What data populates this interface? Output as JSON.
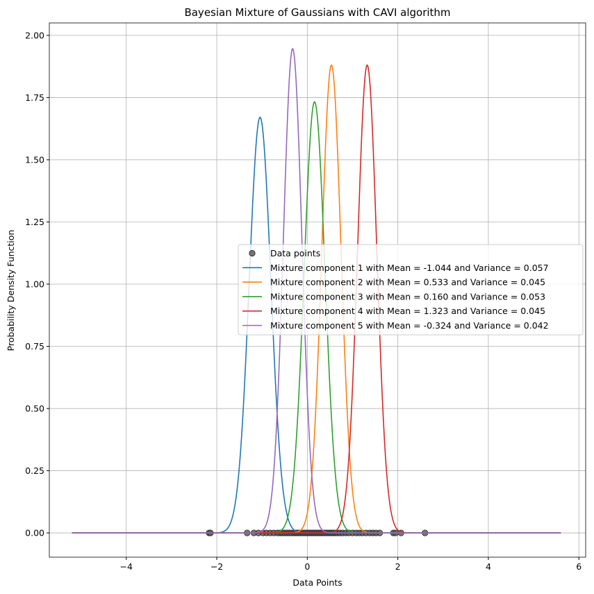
{
  "chart_data": {
    "type": "line",
    "title": "Bayesian Mixture of Gaussians with CAVI algorithm",
    "xlabel": "Data Points",
    "ylabel": "Probability Density Function",
    "xlim": [
      -5.7,
      6.15
    ],
    "ylim": [
      -0.0975,
      2.05
    ],
    "xticks": [
      -4,
      -2,
      0,
      2,
      4,
      6
    ],
    "xtick_labels": [
      "−4",
      "−2",
      "0",
      "2",
      "4",
      "6"
    ],
    "yticks": [
      0.0,
      0.25,
      0.5,
      0.75,
      1.0,
      1.25,
      1.5,
      1.75,
      2.0
    ],
    "ytick_labels": [
      "0.00",
      "0.25",
      "0.50",
      "0.75",
      "1.00",
      "1.25",
      "1.50",
      "1.75",
      "2.00"
    ],
    "grid": true,
    "legend_position": "center-right",
    "x_range": [
      -5.2,
      5.6
    ],
    "scatter": {
      "name": "Data points",
      "color": "#555555",
      "x": [
        -2.17,
        -2.14,
        -1.33,
        -1.18,
        -1.08,
        -0.98,
        -0.9,
        -0.82,
        -0.74,
        -0.66,
        -0.6,
        -0.55,
        -0.5,
        -0.45,
        -0.4,
        -0.35,
        -0.3,
        -0.26,
        -0.22,
        -0.18,
        -0.14,
        -0.1,
        -0.06,
        -0.02,
        0.02,
        0.06,
        0.1,
        0.14,
        0.18,
        0.22,
        0.26,
        0.3,
        0.34,
        0.38,
        0.42,
        0.46,
        0.5,
        0.54,
        0.58,
        0.62,
        0.66,
        0.72,
        0.78,
        0.85,
        0.92,
        1.0,
        1.08,
        1.15,
        1.22,
        1.3,
        1.38,
        1.45,
        1.52,
        1.6,
        1.9,
        1.95,
        2.07,
        2.6
      ]
    },
    "series": [
      {
        "name": "Mixture component 1 with Mean = -1.044 and Variance = 0.057",
        "mean": -1.044,
        "variance": 0.057,
        "color": "#1f77b4"
      },
      {
        "name": "Mixture component 2 with Mean = 0.533 and Variance = 0.045",
        "mean": 0.533,
        "variance": 0.045,
        "color": "#ff7f0e"
      },
      {
        "name": "Mixture component 3 with Mean = 0.160 and Variance = 0.053",
        "mean": 0.16,
        "variance": 0.053,
        "color": "#2ca02c"
      },
      {
        "name": "Mixture component 4 with Mean = 1.323 and Variance = 0.045",
        "mean": 1.323,
        "variance": 0.045,
        "color": "#d62728"
      },
      {
        "name": "Mixture component 5 with Mean = -0.324 and Variance = 0.042",
        "mean": -0.324,
        "variance": 0.042,
        "color": "#9467bd"
      }
    ]
  }
}
